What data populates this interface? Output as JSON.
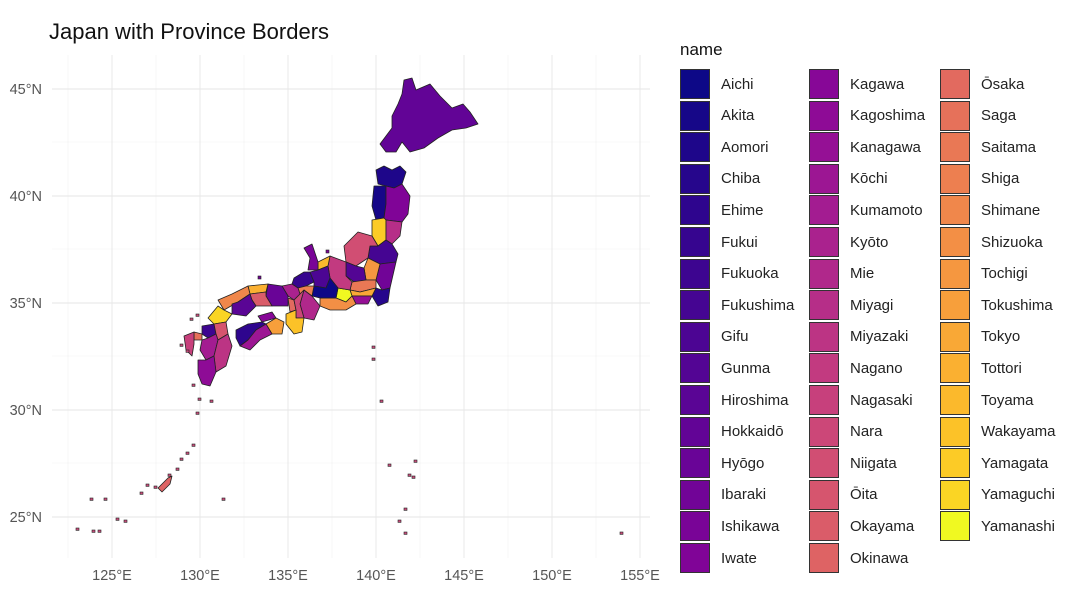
{
  "title": "Japan with Province Borders",
  "legend": {
    "title": "name",
    "items": [
      {
        "label": "Aichi",
        "color": "#0d0887"
      },
      {
        "label": "Akita",
        "color": "#160788"
      },
      {
        "label": "Aomori",
        "color": "#1e068a"
      },
      {
        "label": "Chiba",
        "color": "#26068c"
      },
      {
        "label": "Ehime",
        "color": "#2e058e"
      },
      {
        "label": "Fukui",
        "color": "#36058f"
      },
      {
        "label": "Fukuoka",
        "color": "#3d0590"
      },
      {
        "label": "Fukushima",
        "color": "#450592"
      },
      {
        "label": "Gifu",
        "color": "#4c0593"
      },
      {
        "label": "Gunma",
        "color": "#530594"
      },
      {
        "label": "Hiroshima",
        "color": "#5a0595"
      },
      {
        "label": "Hokkaidō",
        "color": "#620496"
      },
      {
        "label": "Hyōgo",
        "color": "#690497"
      },
      {
        "label": "Ibaraki",
        "color": "#710497"
      },
      {
        "label": "Ishikawa",
        "color": "#790497"
      },
      {
        "label": "Iwate",
        "color": "#800497"
      },
      {
        "label": "Kagawa",
        "color": "#870797"
      },
      {
        "label": "Kagoshima",
        "color": "#8e0b96"
      },
      {
        "label": "Kanagawa",
        "color": "#951095"
      },
      {
        "label": "Kōchi",
        "color": "#9c1693"
      },
      {
        "label": "Kumamoto",
        "color": "#a31c91"
      },
      {
        "label": "Kyōto",
        "color": "#aa228e"
      },
      {
        "label": "Mie",
        "color": "#b0288b"
      },
      {
        "label": "Miyagi",
        "color": "#b62e88"
      },
      {
        "label": "Miyazaki",
        "color": "#bc3484"
      },
      {
        "label": "Nagano",
        "color": "#c23a80"
      },
      {
        "label": "Nagasaki",
        "color": "#c7407c"
      },
      {
        "label": "Nara",
        "color": "#cc4778"
      },
      {
        "label": "Niigata",
        "color": "#d14e73"
      },
      {
        "label": "Ōita",
        "color": "#d6556e"
      },
      {
        "label": "Okayama",
        "color": "#da5c69"
      },
      {
        "label": "Okinawa",
        "color": "#de6364"
      },
      {
        "label": "Ōsaka",
        "color": "#e26a5f"
      },
      {
        "label": "Saga",
        "color": "#e6715a"
      },
      {
        "label": "Saitama",
        "color": "#e97855"
      },
      {
        "label": "Shiga",
        "color": "#ed7f50"
      },
      {
        "label": "Shimane",
        "color": "#f0874b"
      },
      {
        "label": "Shizuoka",
        "color": "#f38f45"
      },
      {
        "label": "Tochigi",
        "color": "#f59740"
      },
      {
        "label": "Tokushima",
        "color": "#f79f3b"
      },
      {
        "label": "Tokyo",
        "color": "#f9a836"
      },
      {
        "label": "Tottori",
        "color": "#fab031"
      },
      {
        "label": "Toyama",
        "color": "#fbb92c"
      },
      {
        "label": "Wakayama",
        "color": "#fcc228"
      },
      {
        "label": "Yamagata",
        "color": "#fccb26"
      },
      {
        "label": "Yamaguchi",
        "color": "#fad524"
      },
      {
        "label": "Yamanashi",
        "color": "#f0f921"
      }
    ]
  },
  "axes": {
    "x_ticks": [
      "125°E",
      "130°E",
      "135°E",
      "140°E",
      "145°E",
      "150°E",
      "155°E"
    ],
    "y_ticks": [
      "45°N",
      "40°N",
      "35°N",
      "30°N",
      "25°N"
    ],
    "grid": true,
    "border_color": "#222222"
  },
  "regions": {
    "hokkaido": "Hokkaidō",
    "aomori": "Aomori",
    "akita": "Akita",
    "iwate": "Iwate",
    "yamagata": "Yamagata",
    "miyagi": "Miyagi",
    "fukushima": "Fukushima",
    "niigata": "Niigata",
    "ibaraki": "Ibaraki",
    "tochigi": "Tochigi",
    "gunma": "Gunma",
    "saitama": "Saitama",
    "chiba": "Chiba",
    "tokyo": "Tokyo",
    "kanagawa": "Kanagawa",
    "yamanashi": "Yamanashi",
    "nagano": "Nagano",
    "shizuoka": "Shizuoka",
    "toyama": "Toyama",
    "ishikawa": "Ishikawa",
    "fukui": "Fukui",
    "gifu": "Gifu",
    "aichi": "Aichi",
    "mie": "Mie",
    "shiga": "Shiga",
    "kyoto": "Kyōto",
    "osaka": "Ōsaka",
    "hyogo": "Hyōgo",
    "nara": "Nara",
    "wakayama": "Wakayama",
    "tottori": "Tottori",
    "shimane": "Shimane",
    "okayama": "Okayama",
    "hiroshima": "Hiroshima",
    "yamaguchi": "Yamaguchi",
    "kagawa": "Kagawa",
    "tokushima": "Tokushima",
    "ehime": "Ehime",
    "kochi": "Kōchi",
    "fukuoka": "Fukuoka",
    "saga": "Saga",
    "nagasaki": "Nagasaki",
    "oita": "Ōita",
    "kumamoto": "Kumamoto",
    "miyazaki": "Miyazaki",
    "kagoshima": "Kagoshima",
    "okinawa": "Okinawa"
  }
}
